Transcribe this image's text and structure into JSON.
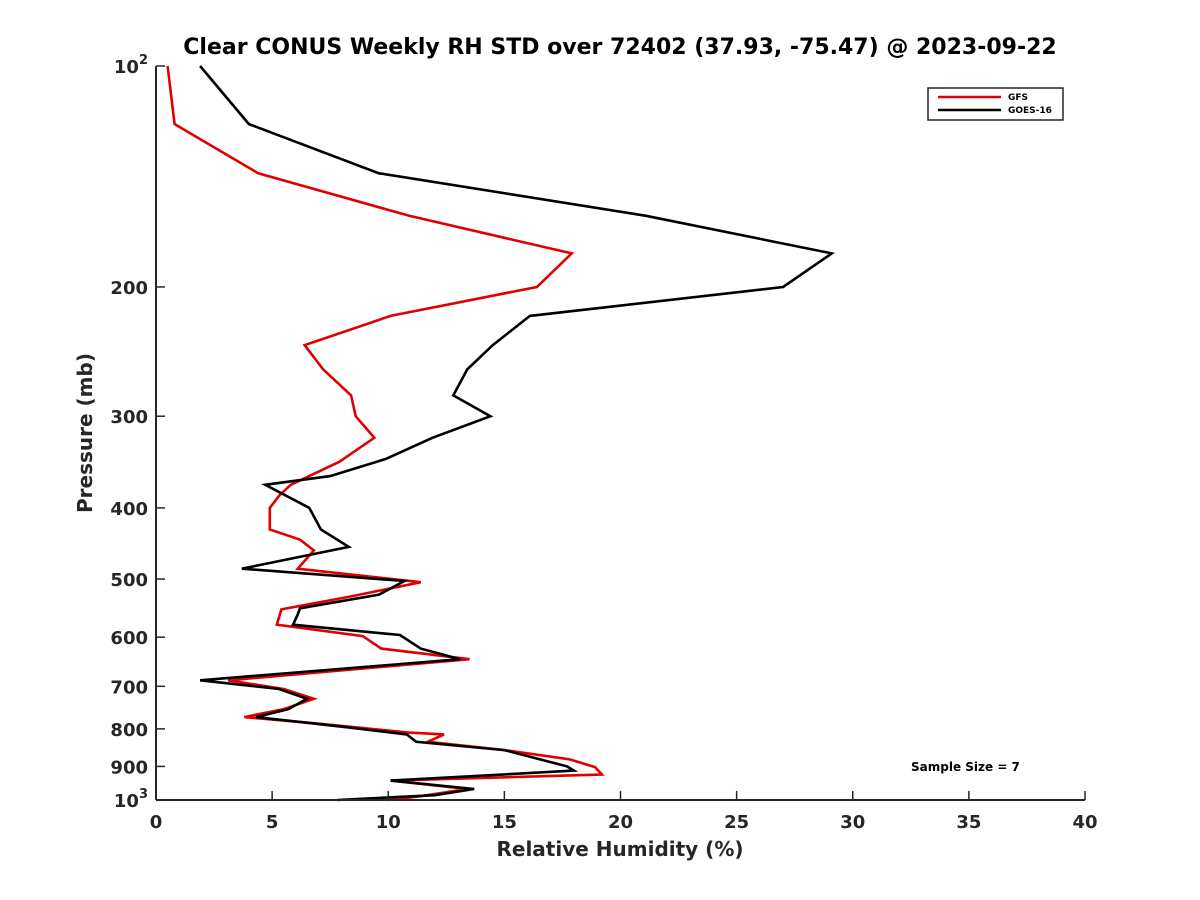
{
  "chart_data": {
    "type": "line",
    "title": "Clear CONUS Weekly RH STD over 72402 (37.93, -75.47) @ 2023-09-22",
    "xlabel": "Relative Humidity (%)",
    "ylabel": "Pressure (mb)",
    "xlim": [
      0,
      40
    ],
    "ylim": [
      100,
      1000
    ],
    "yscale": "log",
    "y_reversed": true,
    "grid": false,
    "legend_position": "top-right",
    "x_ticks": [
      0,
      5,
      10,
      15,
      20,
      25,
      30,
      35,
      40
    ],
    "x_tick_labels": [
      "0",
      "5",
      "10",
      "15",
      "20",
      "25",
      "30",
      "35",
      "40"
    ],
    "y_ticks": [
      100,
      200,
      300,
      400,
      500,
      600,
      700,
      800,
      900,
      1000
    ],
    "y_tick_labels": [
      {
        "base": "10",
        "exp": "2"
      },
      {
        "text": "200"
      },
      {
        "text": "300"
      },
      {
        "text": "400"
      },
      {
        "text": "500"
      },
      {
        "text": "600"
      },
      {
        "text": "700"
      },
      {
        "text": "800"
      },
      {
        "text": "900"
      },
      {
        "base": "10",
        "exp": "3"
      }
    ],
    "annotation": "Sample Size = 7",
    "series": [
      {
        "name": "GFS",
        "color": "#e00000",
        "points": [
          [
            100,
            0.5
          ],
          [
            120,
            0.8
          ],
          [
            140,
            4.4
          ],
          [
            160,
            10.9
          ],
          [
            180,
            17.9
          ],
          [
            200,
            16.4
          ],
          [
            219,
            10.1
          ],
          [
            240,
            6.4
          ],
          [
            259,
            7.2
          ],
          [
            281,
            8.4
          ],
          [
            300,
            8.6
          ],
          [
            321,
            9.4
          ],
          [
            346,
            7.9
          ],
          [
            372,
            5.8
          ],
          [
            385,
            5.3
          ],
          [
            400,
            4.9
          ],
          [
            428,
            4.9
          ],
          [
            442,
            6.2
          ],
          [
            457,
            6.8
          ],
          [
            484,
            6.1
          ],
          [
            505,
            11.4
          ],
          [
            528,
            8.4
          ],
          [
            550,
            5.4
          ],
          [
            577,
            5.2
          ],
          [
            598,
            8.9
          ],
          [
            622,
            9.7
          ],
          [
            643,
            13.5
          ],
          [
            687,
            3.1
          ],
          [
            706,
            5.5
          ],
          [
            728,
            6.8
          ],
          [
            752,
            5.5
          ],
          [
            771,
            3.8
          ],
          [
            786,
            6.8
          ],
          [
            809,
            10.8
          ],
          [
            814,
            12.4
          ],
          [
            833,
            11.7
          ],
          [
            855,
            15.0
          ],
          [
            880,
            17.8
          ],
          [
            902,
            18.9
          ],
          [
            923,
            19.2
          ],
          [
            941,
            10.1
          ],
          [
            966,
            13.4
          ],
          [
            988,
            11.4
          ],
          [
            1000,
            10.0
          ]
        ]
      },
      {
        "name": "GOES-16",
        "color": "#000000",
        "points": [
          [
            100,
            1.9
          ],
          [
            120,
            4.0
          ],
          [
            140,
            9.6
          ],
          [
            160,
            21.1
          ],
          [
            180,
            29.1
          ],
          [
            200,
            27.0
          ],
          [
            219,
            16.1
          ],
          [
            240,
            14.5
          ],
          [
            259,
            13.4
          ],
          [
            281,
            12.8
          ],
          [
            300,
            14.4
          ],
          [
            321,
            11.9
          ],
          [
            343,
            9.9
          ],
          [
            362,
            7.5
          ],
          [
            372,
            4.7
          ],
          [
            400,
            6.6
          ],
          [
            428,
            7.1
          ],
          [
            452,
            8.3
          ],
          [
            484,
            3.7
          ],
          [
            503,
            10.7
          ],
          [
            525,
            9.6
          ],
          [
            548,
            6.2
          ],
          [
            559,
            6.1
          ],
          [
            577,
            5.9
          ],
          [
            596,
            10.5
          ],
          [
            622,
            11.4
          ],
          [
            643,
            13.1
          ],
          [
            687,
            1.9
          ],
          [
            706,
            5.3
          ],
          [
            728,
            6.5
          ],
          [
            752,
            5.7
          ],
          [
            771,
            4.3
          ],
          [
            795,
            8.1
          ],
          [
            814,
            10.8
          ],
          [
            833,
            11.2
          ],
          [
            855,
            15.0
          ],
          [
            900,
            17.7
          ],
          [
            912,
            18.0
          ],
          [
            941,
            10.1
          ],
          [
            966,
            13.7
          ],
          [
            985,
            12.0
          ],
          [
            1000,
            7.8
          ]
        ]
      }
    ]
  }
}
